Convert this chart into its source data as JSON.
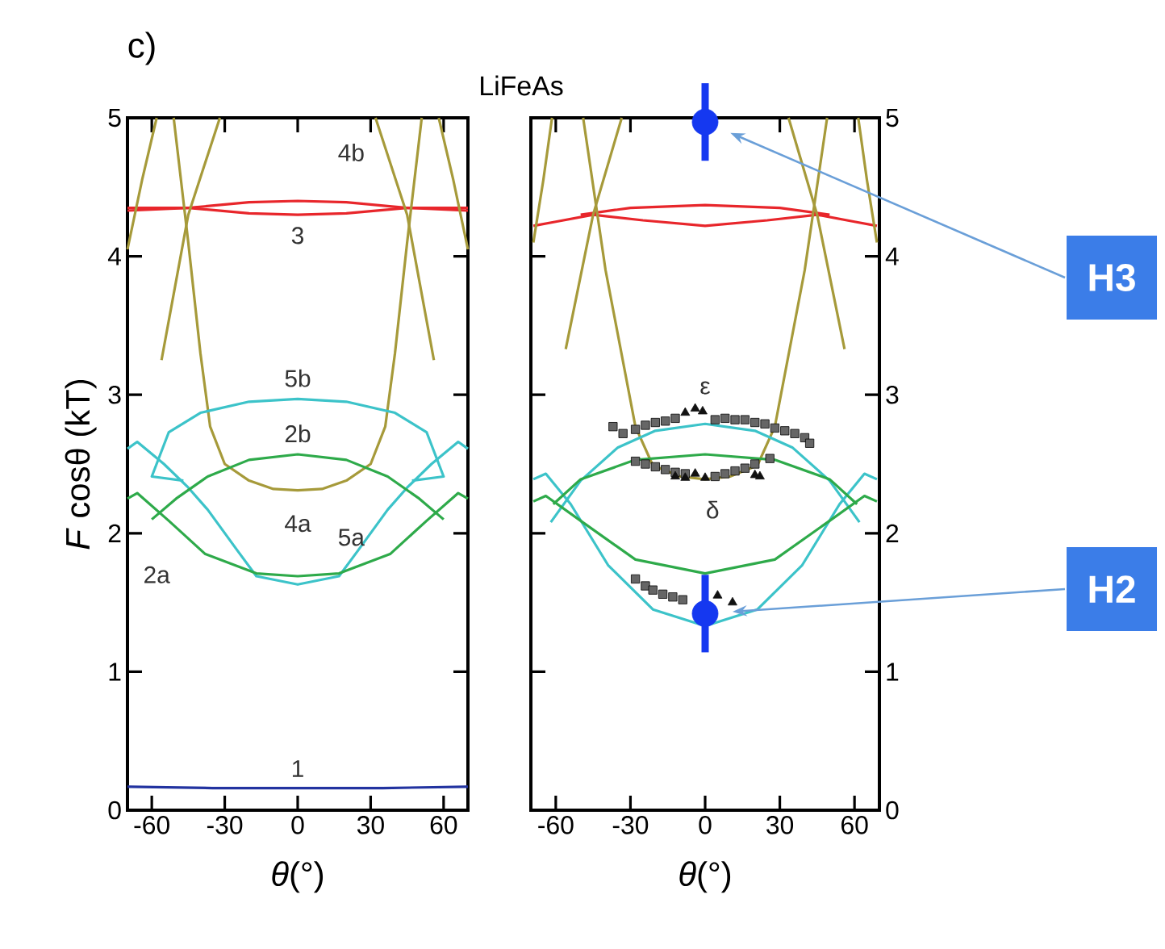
{
  "chart_data": [
    {
      "type": "line",
      "title": "LiFeAs",
      "annotations": [
        "c)"
      ],
      "xlabel": "*θ*(°)",
      "ylabel": "*F* cosθ (kT)",
      "xlim": [
        -70,
        70
      ],
      "ylim": [
        0,
        5
      ],
      "xticks": [
        -60,
        -30,
        0,
        30,
        60
      ],
      "yticks": [
        0,
        1,
        2,
        3,
        4,
        5
      ],
      "series": [
        {
          "name": "1",
          "color": "#2233a0",
          "x": [
            -70,
            -35,
            0,
            35,
            70
          ],
          "values": [
            0.17,
            0.16,
            0.16,
            0.16,
            0.17
          ]
        },
        {
          "name": "3",
          "color": "#e8262b",
          "x": [
            -70,
            -45,
            -20,
            0,
            20,
            45,
            70
          ],
          "values": [
            4.33,
            4.35,
            4.39,
            4.4,
            4.39,
            4.35,
            4.33
          ]
        },
        {
          "color": "#e8262b",
          "x": [
            -70,
            -45,
            -20,
            0,
            20,
            45,
            70
          ],
          "values": [
            4.35,
            4.35,
            4.31,
            4.3,
            4.31,
            4.35,
            4.35
          ]
        },
        {
          "name": "4a",
          "color": "#a69a3a",
          "x": [
            -51,
            -45,
            -40,
            -36,
            -30,
            -20,
            -10,
            0,
            10,
            20,
            30,
            36,
            40,
            45,
            51
          ],
          "values": [
            5,
            4.1,
            3.3,
            2.77,
            2.5,
            2.38,
            2.32,
            2.31,
            2.32,
            2.38,
            2.5,
            2.77,
            3.3,
            4.1,
            5
          ]
        },
        {
          "name": "4b",
          "color": "#a69a3a",
          "x": [
            -70,
            -64,
            -58,
            -57,
            -56,
            -45,
            -32,
            0,
            32,
            45,
            56,
            57,
            58,
            64,
            70
          ],
          "values": [
            4.05,
            4.55,
            5,
            null,
            3.25,
            4.3,
            5,
            null,
            5,
            4.3,
            3.25,
            null,
            5,
            4.55,
            4.05
          ]
        },
        {
          "name": "5b",
          "color": "#3cc3c9",
          "x": [
            -47,
            -60,
            -53,
            -40,
            -20,
            0,
            20,
            40,
            53,
            60,
            47
          ],
          "values": [
            2.38,
            2.41,
            2.73,
            2.87,
            2.95,
            2.97,
            2.95,
            2.87,
            2.73,
            2.41,
            2.38
          ]
        },
        {
          "name": "5a",
          "color": "#3cc3c9",
          "x": [
            -70,
            -66,
            -55,
            -45,
            -37,
            -25,
            -17,
            0,
            17,
            25,
            37,
            45,
            55,
            66,
            70
          ],
          "values": [
            2.61,
            2.66,
            2.5,
            2.33,
            2.17,
            1.88,
            1.69,
            1.63,
            1.69,
            1.88,
            2.17,
            2.33,
            2.5,
            2.66,
            2.61
          ]
        },
        {
          "name": "2b",
          "color": "#2eaa4a",
          "x": [
            -60,
            -50,
            -37,
            -20,
            0,
            20,
            37,
            50,
            60
          ],
          "values": [
            2.1,
            2.25,
            2.41,
            2.53,
            2.57,
            2.53,
            2.41,
            2.25,
            2.1
          ]
        },
        {
          "name": "2a",
          "color": "#2eaa4a",
          "x": [
            -70,
            -66,
            -53,
            -38,
            -17,
            0,
            17,
            38,
            53,
            66,
            70
          ],
          "values": [
            2.25,
            2.29,
            2.09,
            1.85,
            1.71,
            1.69,
            1.71,
            1.85,
            2.09,
            2.29,
            2.25
          ]
        }
      ]
    },
    {
      "type": "line",
      "annotations": [
        "H3",
        "H2"
      ],
      "xlabel": "*θ*(°)",
      "xlim": [
        -70,
        70
      ],
      "ylim": [
        0,
        5
      ],
      "xticks": [
        -60,
        -30,
        0,
        30,
        60
      ],
      "yticks": [
        0,
        1,
        2,
        3,
        4,
        5
      ],
      "series": [
        {
          "color": "#e8262b",
          "x": [
            -50,
            -30,
            0,
            30,
            50
          ],
          "values": [
            4.3,
            4.35,
            4.37,
            4.35,
            4.3
          ]
        },
        {
          "color": "#e8262b",
          "x": [
            -69,
            -60,
            -45,
            -25,
            0,
            25,
            45,
            60,
            69
          ],
          "values": [
            4.22,
            4.25,
            4.3,
            4.26,
            4.22,
            4.26,
            4.3,
            4.25,
            4.22
          ]
        },
        {
          "color": "#a69a3a",
          "x": [
            -49,
            -40,
            -28,
            -21,
            -10,
            0,
            10,
            21,
            28,
            40,
            49
          ],
          "values": [
            5,
            3.9,
            2.77,
            2.49,
            2.41,
            2.39,
            2.41,
            2.49,
            2.77,
            3.9,
            5
          ]
        },
        {
          "color": "#a69a3a",
          "x": [
            -69,
            -65,
            -61.5,
            -60,
            -56,
            -45,
            -33.5,
            0,
            33.5,
            45,
            56,
            60,
            61.5,
            65,
            69
          ],
          "values": [
            4.1,
            4.55,
            5,
            null,
            3.33,
            4.3,
            5,
            null,
            5,
            4.3,
            3.33,
            null,
            5,
            4.55,
            4.1
          ]
        },
        {
          "color": "#3cc3c9",
          "x": [
            -62,
            -50,
            -35,
            -20,
            0,
            20,
            35,
            50,
            62
          ],
          "values": [
            2.08,
            2.38,
            2.62,
            2.74,
            2.79,
            2.74,
            2.62,
            2.38,
            2.08
          ]
        },
        {
          "color": "#3cc3c9",
          "x": [
            -69,
            -64,
            -54,
            -39,
            -21,
            0,
            21,
            39,
            54,
            64,
            69
          ],
          "values": [
            2.39,
            2.43,
            2.21,
            1.77,
            1.45,
            1.33,
            1.45,
            1.77,
            2.21,
            2.43,
            2.39
          ]
        },
        {
          "color": "#2eaa4a",
          "x": [
            -61,
            -50,
            -28,
            0,
            28,
            50,
            61
          ],
          "values": [
            2.21,
            2.39,
            2.53,
            2.57,
            2.53,
            2.39,
            2.21
          ]
        },
        {
          "color": "#2eaa4a",
          "x": [
            -69,
            -64,
            -50,
            -28,
            0,
            28,
            50,
            64,
            69
          ],
          "values": [
            2.23,
            2.27,
            2.09,
            1.81,
            1.71,
            1.81,
            2.09,
            2.27,
            2.23
          ]
        },
        {
          "name": "ε",
          "type": "scatter",
          "marker": "square",
          "color": "#666666",
          "x": [
            -37,
            -33,
            -28,
            -24,
            -20,
            -16,
            -12,
            4,
            8,
            12,
            16,
            20,
            24,
            28,
            32,
            36,
            40,
            42
          ],
          "values": [
            2.77,
            2.72,
            2.75,
            2.78,
            2.8,
            2.81,
            2.83,
            2.82,
            2.83,
            2.82,
            2.82,
            2.8,
            2.79,
            2.76,
            2.74,
            2.72,
            2.69,
            2.65
          ]
        },
        {
          "type": "scatter",
          "marker": "triangle",
          "color": "#111111",
          "x": [
            -8,
            -4,
            -1
          ],
          "values": [
            2.87,
            2.9,
            2.88
          ]
        },
        {
          "name": "δ",
          "type": "scatter",
          "marker": "square",
          "color": "#666666",
          "x": [
            -28,
            -24,
            -20,
            -16,
            -12,
            -8,
            4,
            8,
            12,
            16,
            20,
            26
          ],
          "values": [
            2.52,
            2.5,
            2.48,
            2.46,
            2.44,
            2.43,
            2.41,
            2.43,
            2.45,
            2.47,
            2.5,
            2.54
          ]
        },
        {
          "type": "scatter",
          "marker": "triangle",
          "color": "#111111",
          "x": [
            -12,
            -8,
            -4,
            0,
            20,
            22
          ],
          "values": [
            2.41,
            2.4,
            2.43,
            2.4,
            2.42,
            2.41
          ]
        },
        {
          "type": "scatter",
          "marker": "square",
          "color": "#666666",
          "x": [
            -28,
            -24,
            -21,
            -17,
            -13,
            -9
          ],
          "values": [
            1.67,
            1.62,
            1.59,
            1.56,
            1.54,
            1.52
          ]
        },
        {
          "type": "scatter",
          "marker": "triangle",
          "color": "#111111",
          "x": [
            5,
            11
          ],
          "values": [
            1.55,
            1.5
          ]
        },
        {
          "type": "scatter",
          "marker": "circle",
          "color": "#1538f0",
          "x": [
            0,
            0
          ],
          "values": [
            4.97,
            1.42
          ],
          "errors": [
            0.28,
            0.28
          ]
        }
      ]
    }
  ]
}
